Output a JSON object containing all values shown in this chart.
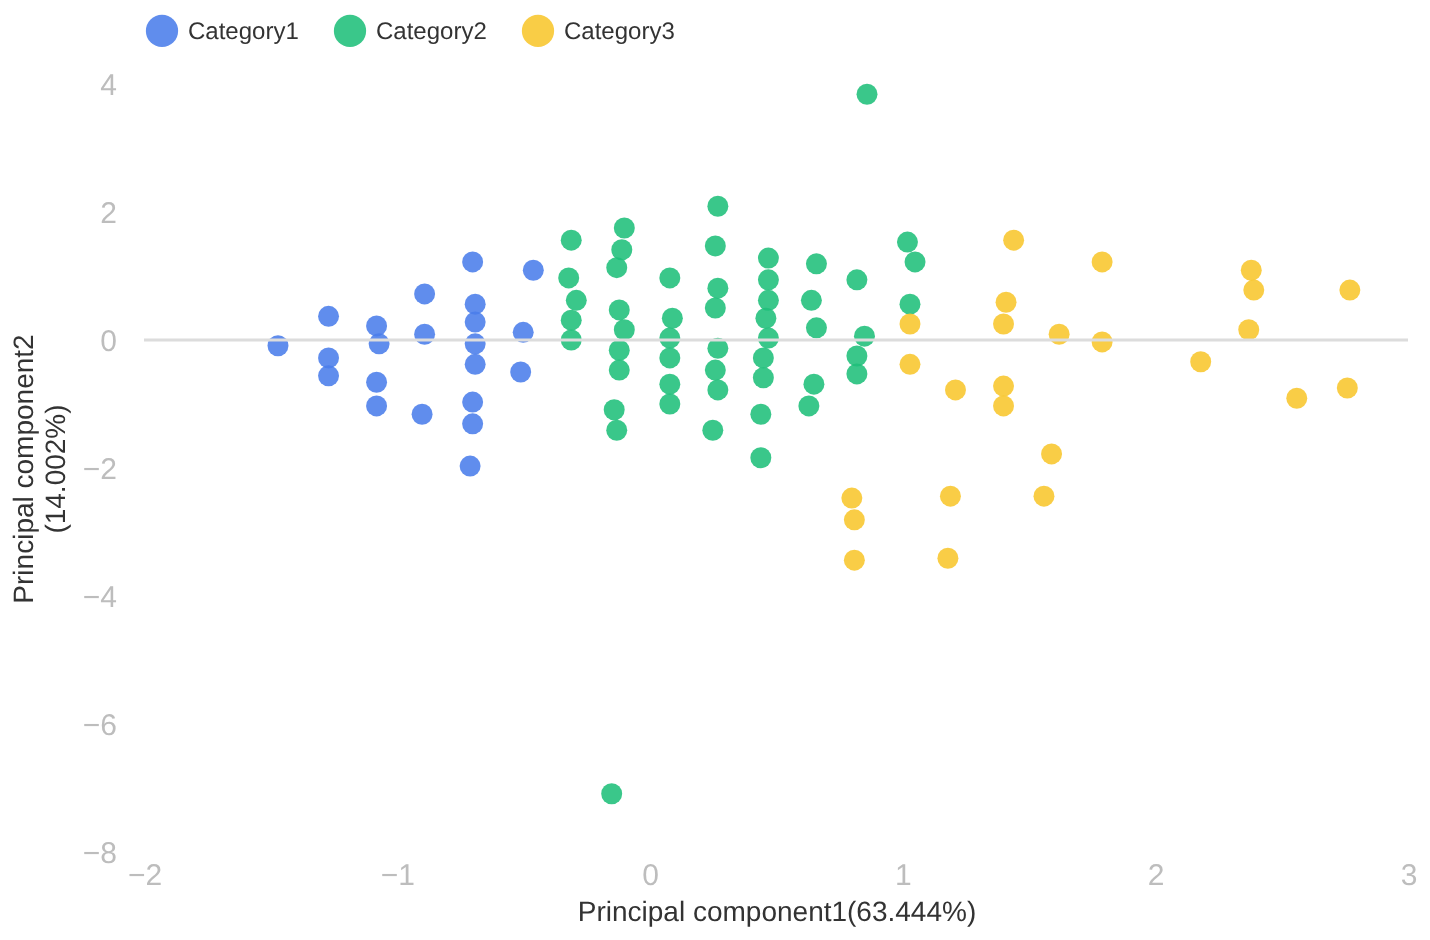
{
  "chart_data": {
    "type": "scatter",
    "xlabel": "Principal component1(63.444%)",
    "ylabel": "Principal component2\n(14.002%)",
    "xlim": [
      -2,
      3
    ],
    "xticks": [
      -2,
      -1,
      0,
      1,
      2,
      3
    ],
    "ylim": [
      -8,
      4
    ],
    "yticks": [
      -8,
      -6,
      -4,
      -2,
      0,
      2,
      4
    ],
    "grid": false,
    "legend": "top",
    "marker": "circle",
    "ref_lines": [
      {
        "axis": "y",
        "value": 0,
        "label": null,
        "color": "#dcdcdc"
      }
    ],
    "series": [
      {
        "name": "Category1",
        "color": "#4a7deb",
        "x": [
          -1.47,
          -1.27,
          -1.27,
          -1.27,
          -1.08,
          -1.07,
          -1.08,
          -1.08,
          -0.89,
          -0.89,
          -0.9,
          -0.7,
          -0.69,
          -0.69,
          -0.69,
          -0.69,
          -0.7,
          -0.7,
          -0.71,
          -0.46,
          -0.5,
          -0.51
        ],
        "values": [
          -0.09,
          0.37,
          -0.28,
          -0.56,
          0.22,
          -0.06,
          -0.66,
          -1.03,
          0.72,
          0.09,
          -1.16,
          1.22,
          0.56,
          0.28,
          -0.06,
          -0.38,
          -0.97,
          -1.31,
          -1.97,
          1.09,
          0.12,
          -0.5
        ]
      },
      {
        "name": "Category2",
        "color": "#1fbf7a",
        "x": [
          0.86,
          -0.31,
          -0.32,
          -0.29,
          -0.31,
          -0.31,
          -0.1,
          -0.11,
          -0.13,
          -0.12,
          -0.1,
          -0.12,
          -0.12,
          -0.14,
          -0.13,
          0.08,
          0.09,
          0.08,
          0.08,
          0.08,
          0.08,
          0.27,
          0.26,
          0.27,
          0.26,
          0.27,
          0.26,
          0.27,
          0.25,
          0.47,
          0.47,
          0.47,
          0.46,
          0.47,
          0.45,
          0.45,
          0.44,
          0.44,
          0.66,
          0.64,
          0.66,
          0.65,
          0.63,
          0.82,
          0.85,
          0.82,
          0.82,
          1.02,
          1.05,
          1.03,
          -0.15
        ],
        "values": [
          3.84,
          1.56,
          0.97,
          0.62,
          0.31,
          0,
          1.75,
          1.41,
          1.13,
          0.47,
          0.16,
          -0.16,
          -0.47,
          -1.09,
          -1.41,
          0.97,
          0.34,
          0.03,
          -0.28,
          -0.69,
          -1,
          2.09,
          1.47,
          0.81,
          0.5,
          -0.13,
          -0.47,
          -0.78,
          -1.41,
          1.28,
          0.94,
          0.62,
          0.34,
          0.03,
          -0.28,
          -0.59,
          -1.16,
          -1.84,
          1.19,
          0.62,
          0.19,
          -0.69,
          -1.03,
          0.94,
          0.06,
          -0.25,
          -0.53,
          1.53,
          1.22,
          0.56,
          -7.09
        ]
      },
      {
        "name": "Category3",
        "color": "#f8c62c",
        "x": [
          1.44,
          1.79,
          2.38,
          2.39,
          2.77,
          1.41,
          1.4,
          1.03,
          1.62,
          1.79,
          2.37,
          1.03,
          2.18,
          1.21,
          1.4,
          1.4,
          2.56,
          2.76,
          1.59,
          1.56,
          0.8,
          0.81,
          0.81,
          1.19,
          1.18
        ],
        "values": [
          1.56,
          1.22,
          1.09,
          0.78,
          0.78,
          0.59,
          0.25,
          0.25,
          0.09,
          -0.03,
          0.16,
          -0.38,
          -0.34,
          -0.78,
          -0.72,
          -1.03,
          -0.91,
          -0.75,
          -1.78,
          -2.44,
          -2.47,
          -2.81,
          -3.44,
          -2.44,
          -3.41
        ]
      }
    ]
  }
}
